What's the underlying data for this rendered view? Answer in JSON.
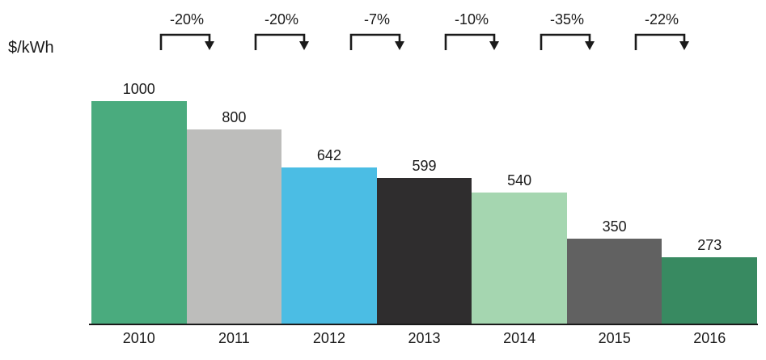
{
  "chart_data": {
    "type": "bar",
    "title": "",
    "ylabel": "$/kWh",
    "xlabel": "",
    "categories": [
      "2010",
      "2011",
      "2012",
      "2013",
      "2014",
      "2015",
      "2016"
    ],
    "values": [
      1000,
      800,
      642,
      599,
      540,
      350,
      273
    ],
    "deltas": [
      "-20%",
      "-20%",
      "-7%",
      "-10%",
      "-35%",
      "-22%"
    ],
    "colors": [
      "#4aab7e",
      "#bdbdbb",
      "#4bbde4",
      "#2f2d2e",
      "#a5d6b0",
      "#616161",
      "#388a61"
    ],
    "ylim": [
      0,
      1000
    ],
    "grid": false,
    "legend": null,
    "annotation_style": "step-arrow-down between adjacent bars"
  }
}
